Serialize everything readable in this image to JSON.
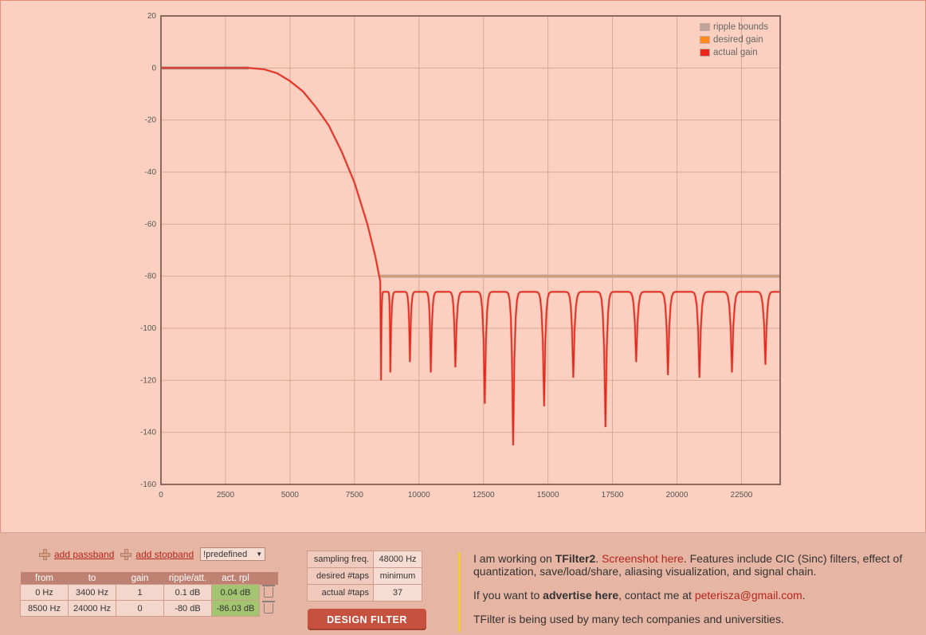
{
  "chart_data": {
    "type": "line",
    "x_ticks": [
      "0",
      "2500",
      "5000",
      "7500",
      "10000",
      "12500",
      "15000",
      "17500",
      "20000",
      "22500"
    ],
    "y_ticks": [
      "20",
      "0",
      "-20",
      "-40",
      "-60",
      "-80",
      "-100",
      "-120",
      "-140",
      "-160"
    ],
    "xlim": [
      0,
      24000
    ],
    "ylim": [
      -160,
      20
    ],
    "grid": true,
    "legend_position": "top-right",
    "legend": [
      "ripple bounds",
      "desired gain",
      "actual gain"
    ],
    "series": [
      {
        "name": "ripple bounds",
        "color": "#c0a39a",
        "segments": [
          [
            [
              0,
              0
            ],
            [
              3400,
              0
            ]
          ],
          [
            [
              8500,
              -80
            ],
            [
              24000,
              -80
            ]
          ]
        ]
      },
      {
        "name": "desired gain",
        "color": "#ff8b1e",
        "segments": [
          [
            [
              0,
              0
            ],
            [
              3400,
              0
            ]
          ],
          [
            [
              8500,
              -80
            ],
            [
              24000,
              -80
            ]
          ]
        ]
      },
      {
        "name": "actual gain",
        "color": "#e8281c",
        "passband": [
          [
            0,
            0
          ],
          [
            3400,
            0
          ],
          [
            4000,
            -0.5
          ],
          [
            4500,
            -2
          ],
          [
            5000,
            -5
          ],
          [
            5500,
            -9
          ],
          [
            6000,
            -15
          ],
          [
            6500,
            -22
          ],
          [
            7000,
            -32
          ],
          [
            7500,
            -44
          ],
          [
            8000,
            -60
          ],
          [
            8300,
            -72
          ],
          [
            8500,
            -82
          ]
        ],
        "nulls": [
          [
            8530,
            -120
          ],
          [
            8890,
            -117
          ],
          [
            9650,
            -113
          ],
          [
            10460,
            -117
          ],
          [
            11410,
            -115
          ],
          [
            12550,
            -129
          ],
          [
            13650,
            -145
          ],
          [
            14850,
            -130
          ],
          [
            15980,
            -119
          ],
          [
            17230,
            -138
          ],
          [
            18420,
            -113
          ],
          [
            19650,
            -118
          ],
          [
            20870,
            -119
          ],
          [
            22130,
            -117
          ],
          [
            23430,
            -114
          ]
        ],
        "lobe_peak": -86,
        "end_value": -86
      }
    ]
  },
  "controls": {
    "add_passband": "add passband",
    "add_stopband": "add stopband",
    "predefined": "!predefined"
  },
  "bands": {
    "headers": [
      "from",
      "to",
      "gain",
      "ripple/att.",
      "act. rpl"
    ],
    "rows": [
      [
        "0 Hz",
        "3400 Hz",
        "1",
        "0.1 dB",
        "0.04 dB"
      ],
      [
        "8500 Hz",
        "24000 Hz",
        "0",
        "-80 dB",
        "-86.03 dB"
      ]
    ]
  },
  "params": {
    "sampling_label": "sampling freq.",
    "sampling_value": "48000 Hz",
    "desired_label": "desired #taps",
    "desired_value": "minimum",
    "actual_label": "actual #taps",
    "actual_value": "37"
  },
  "design_button": "DESIGN FILTER",
  "ad": {
    "p1_a": "I am working on ",
    "p1_b": "TFilter2",
    "p1_c": ". ",
    "p1_link": "Screenshot here",
    "p1_d": ". Features include CIC (Sinc) filters, effect of quantization, save/load/share, aliasing visualization, and signal chain.",
    "p2_a": "If you want to ",
    "p2_b": "advertise here",
    "p2_c": ", contact me at ",
    "p2_email": "peterisza@gmail.com",
    "p2_d": ".",
    "p3": "TFilter is being used by many tech companies and universities."
  }
}
